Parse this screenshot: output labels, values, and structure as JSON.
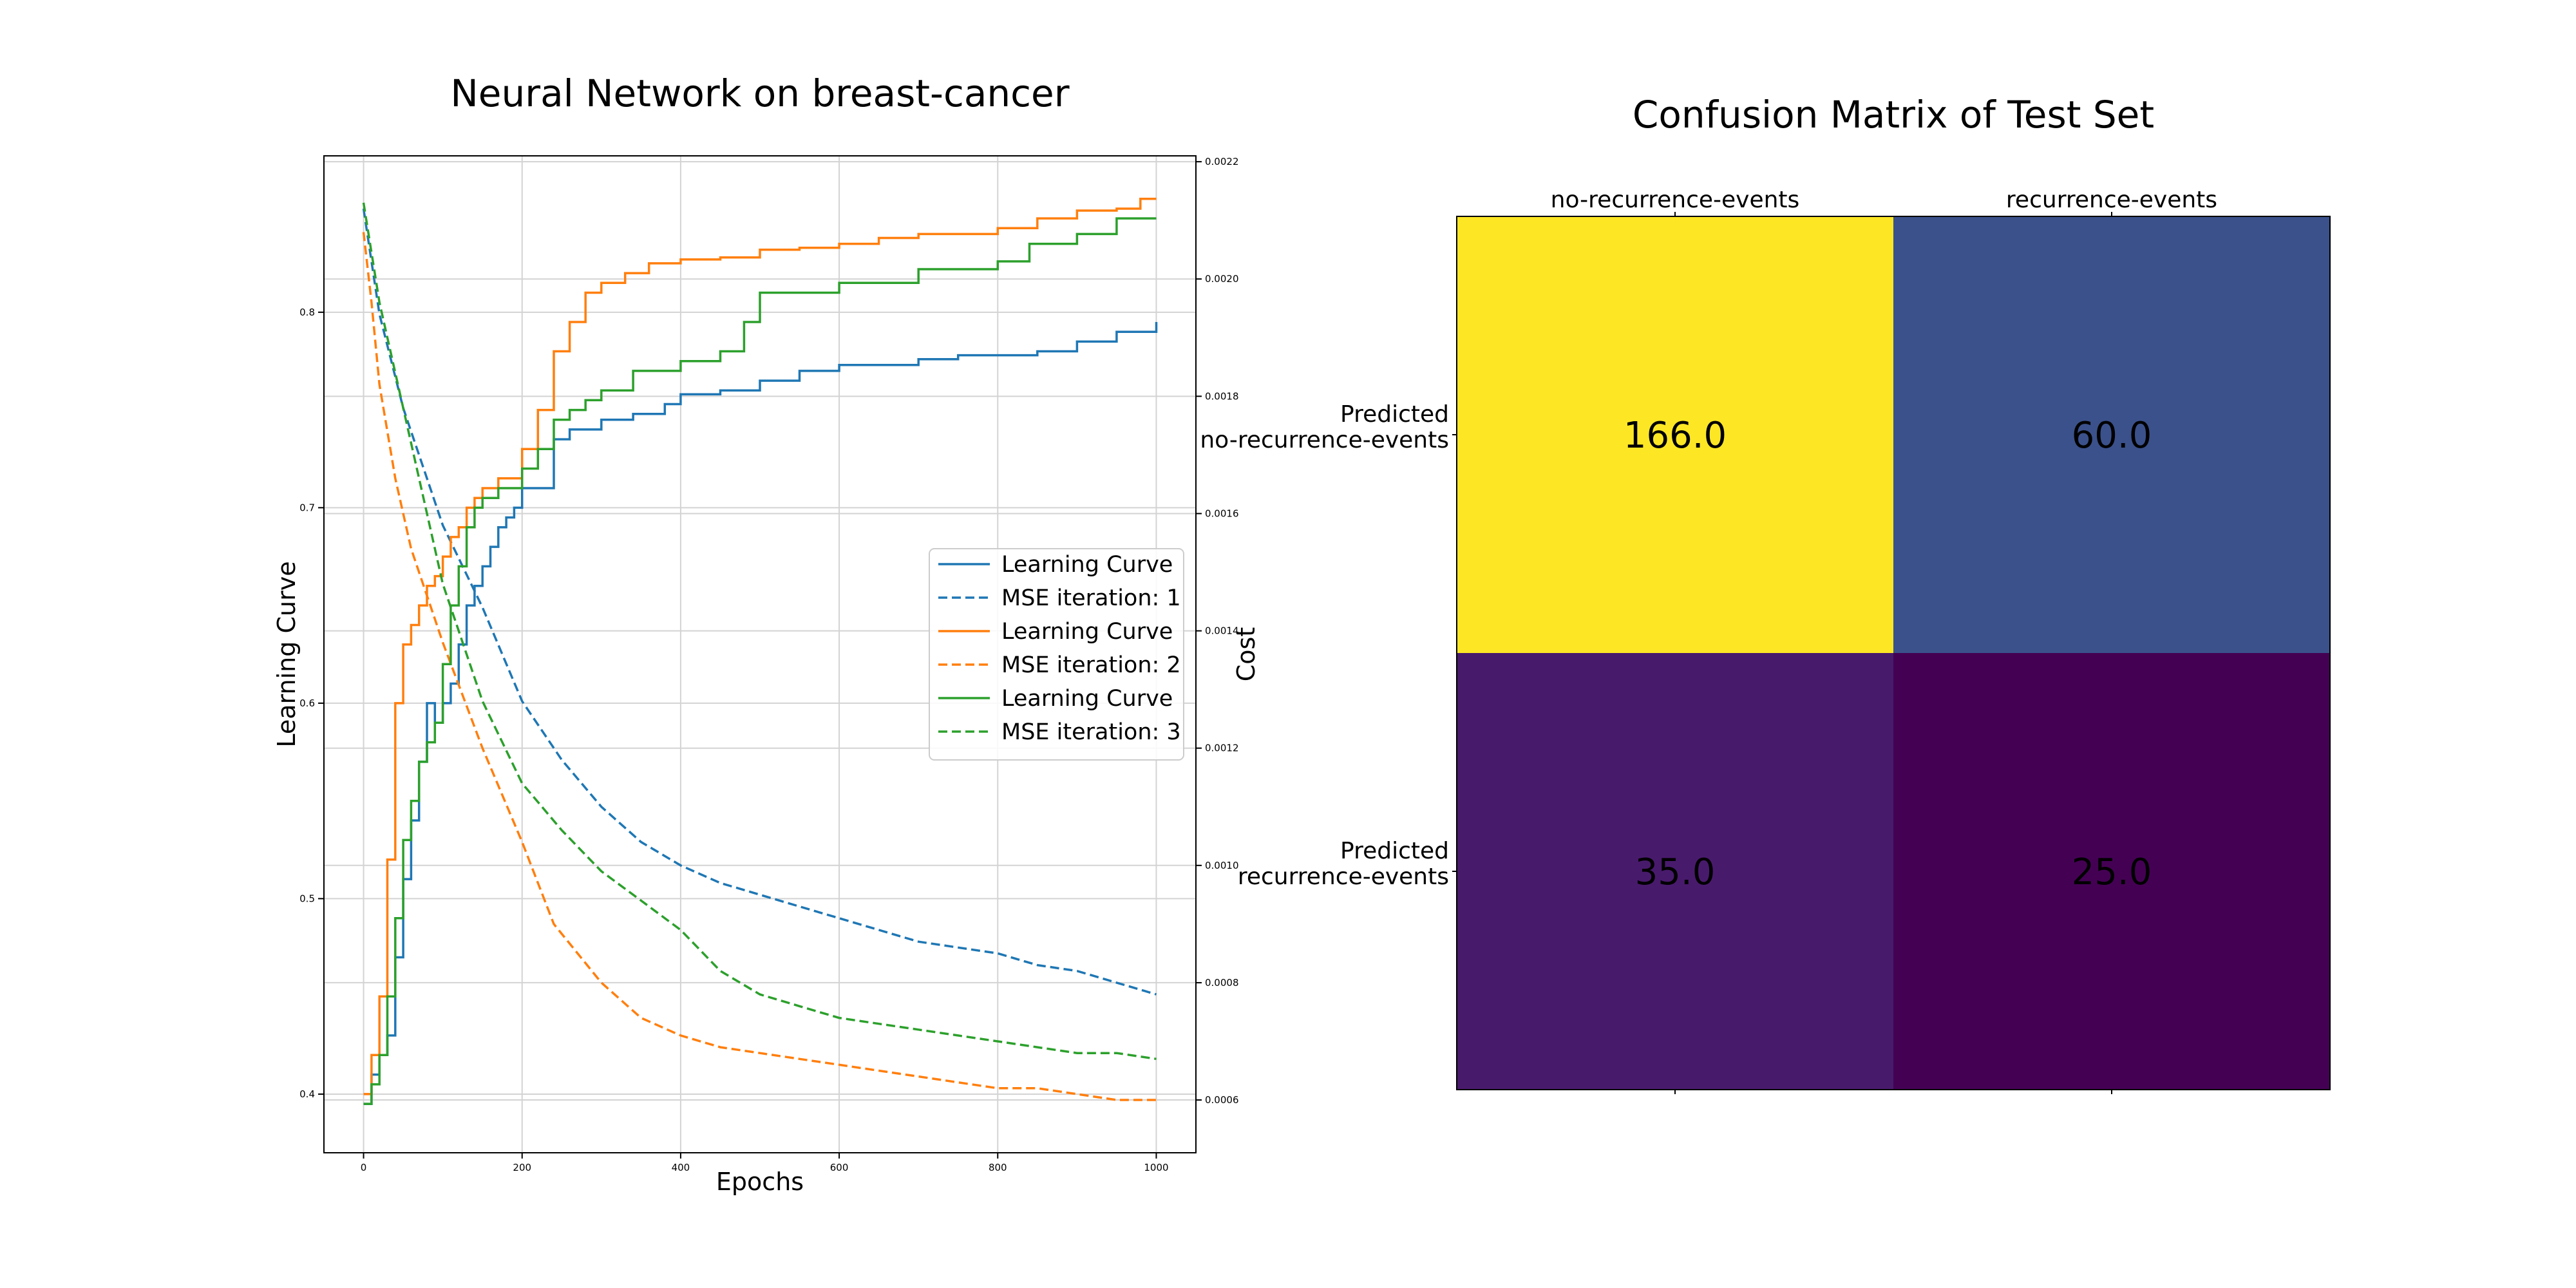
{
  "figure": {
    "left_title": "Neural Network on breast-cancer",
    "right_title": "Confusion Matrix of Test Set"
  },
  "chart_data": [
    {
      "type": "line",
      "title": "Neural Network on breast-cancer",
      "xlabel": "Epochs",
      "ylabel": "Learning Curve",
      "y2label": "Cost",
      "xlim": [
        -50,
        1050
      ],
      "ylim": [
        0.37,
        0.88
      ],
      "y2lim": [
        0.00051,
        0.00221
      ],
      "xticks": [
        0,
        200,
        400,
        600,
        800,
        1000
      ],
      "yticks": [
        0.4,
        0.5,
        0.6,
        0.7,
        0.8
      ],
      "y2ticks": [
        0.0006,
        0.0008,
        0.001,
        0.0012,
        0.0014,
        0.0016,
        0.0018,
        0.002,
        0.0022
      ],
      "grid": true,
      "legend_position": "center-right",
      "series": [
        {
          "name": "Learning Curve",
          "axis": "left",
          "style": "solid",
          "color": "#1f77b4",
          "x": [
            0,
            10,
            20,
            30,
            40,
            50,
            60,
            70,
            80,
            90,
            100,
            110,
            120,
            130,
            140,
            150,
            160,
            170,
            180,
            190,
            200,
            220,
            240,
            260,
            280,
            300,
            340,
            380,
            400,
            450,
            500,
            550,
            600,
            650,
            700,
            750,
            800,
            850,
            900,
            950,
            1000
          ],
          "y": [
            0.395,
            0.41,
            0.42,
            0.43,
            0.47,
            0.51,
            0.54,
            0.57,
            0.6,
            0.59,
            0.6,
            0.61,
            0.63,
            0.65,
            0.66,
            0.67,
            0.68,
            0.69,
            0.695,
            0.7,
            0.71,
            0.71,
            0.735,
            0.74,
            0.74,
            0.745,
            0.748,
            0.753,
            0.758,
            0.76,
            0.765,
            0.77,
            0.773,
            0.773,
            0.776,
            0.778,
            0.778,
            0.78,
            0.785,
            0.79,
            0.795
          ]
        },
        {
          "name": "MSE iteration: 1",
          "axis": "right",
          "style": "dashed",
          "color": "#1f77b4",
          "x": [
            0,
            20,
            50,
            100,
            150,
            200,
            250,
            300,
            350,
            400,
            450,
            500,
            550,
            600,
            650,
            700,
            750,
            800,
            850,
            900,
            950,
            1000
          ],
          "y": [
            0.00212,
            0.00194,
            0.00178,
            0.00158,
            0.00144,
            0.00128,
            0.00118,
            0.0011,
            0.00104,
            0.001,
            0.00097,
            0.00095,
            0.00093,
            0.00091,
            0.00089,
            0.00087,
            0.00086,
            0.00085,
            0.00083,
            0.00082,
            0.0008,
            0.00078
          ]
        },
        {
          "name": "Learning Curve",
          "axis": "left",
          "style": "solid",
          "color": "#ff7f0e",
          "x": [
            0,
            10,
            20,
            30,
            40,
            50,
            60,
            70,
            80,
            90,
            100,
            110,
            120,
            130,
            140,
            150,
            170,
            200,
            220,
            240,
            260,
            280,
            300,
            330,
            360,
            400,
            450,
            500,
            550,
            600,
            650,
            700,
            750,
            800,
            850,
            900,
            950,
            980,
            1000
          ],
          "y": [
            0.4,
            0.42,
            0.45,
            0.52,
            0.6,
            0.63,
            0.64,
            0.65,
            0.66,
            0.665,
            0.675,
            0.685,
            0.69,
            0.7,
            0.705,
            0.71,
            0.715,
            0.73,
            0.75,
            0.78,
            0.795,
            0.81,
            0.815,
            0.82,
            0.825,
            0.827,
            0.828,
            0.832,
            0.833,
            0.835,
            0.838,
            0.84,
            0.84,
            0.843,
            0.848,
            0.852,
            0.853,
            0.858,
            0.858
          ]
        },
        {
          "name": "MSE iteration: 2",
          "axis": "right",
          "style": "dashed",
          "color": "#ff7f0e",
          "x": [
            0,
            10,
            20,
            40,
            60,
            80,
            100,
            150,
            200,
            240,
            300,
            350,
            400,
            450,
            500,
            550,
            600,
            650,
            700,
            750,
            800,
            850,
            900,
            950,
            1000
          ],
          "y": [
            0.00208,
            0.00196,
            0.00182,
            0.00166,
            0.00154,
            0.00146,
            0.00138,
            0.0012,
            0.00104,
            0.0009,
            0.0008,
            0.00074,
            0.00071,
            0.00069,
            0.00068,
            0.00067,
            0.00066,
            0.00065,
            0.00064,
            0.00063,
            0.00062,
            0.00062,
            0.00061,
            0.0006,
            0.0006
          ]
        },
        {
          "name": "Learning Curve",
          "axis": "left",
          "style": "solid",
          "color": "#2ca02c",
          "x": [
            0,
            10,
            20,
            30,
            40,
            50,
            60,
            70,
            80,
            90,
            100,
            110,
            120,
            130,
            140,
            150,
            170,
            200,
            220,
            240,
            260,
            280,
            300,
            340,
            400,
            450,
            480,
            500,
            600,
            700,
            800,
            840,
            900,
            950,
            1000
          ],
          "y": [
            0.395,
            0.405,
            0.42,
            0.45,
            0.49,
            0.53,
            0.55,
            0.57,
            0.58,
            0.59,
            0.62,
            0.65,
            0.67,
            0.69,
            0.7,
            0.705,
            0.71,
            0.72,
            0.73,
            0.745,
            0.75,
            0.755,
            0.76,
            0.77,
            0.775,
            0.78,
            0.795,
            0.81,
            0.815,
            0.822,
            0.826,
            0.835,
            0.84,
            0.848,
            0.848
          ]
        },
        {
          "name": "MSE iteration: 3",
          "axis": "right",
          "style": "dashed",
          "color": "#2ca02c",
          "x": [
            0,
            20,
            50,
            100,
            150,
            200,
            250,
            300,
            350,
            400,
            450,
            500,
            550,
            600,
            650,
            700,
            750,
            800,
            850,
            900,
            950,
            1000
          ],
          "y": [
            0.00213,
            0.00196,
            0.00178,
            0.00148,
            0.00128,
            0.00114,
            0.00106,
            0.00099,
            0.00094,
            0.00089,
            0.00082,
            0.00078,
            0.00076,
            0.00074,
            0.00073,
            0.00072,
            0.00071,
            0.0007,
            0.00069,
            0.00068,
            0.00068,
            0.00067
          ]
        }
      ]
    },
    {
      "type": "heatmap",
      "title": "Confusion Matrix of Test Set",
      "columns": [
        "no-recurrence-events",
        "recurrence-events"
      ],
      "rows": [
        "Predicted\nno-recurrence-events",
        "Predicted\nrecurrence-events"
      ],
      "values": [
        [
          166.0,
          60.0
        ],
        [
          35.0,
          25.0
        ]
      ],
      "value_labels": [
        [
          "166.0",
          "60.0"
        ],
        [
          "35.0",
          "25.0"
        ]
      ],
      "colormap": "viridis",
      "cell_colors": [
        [
          "#fde725",
          "#3b518b"
        ],
        [
          "#481a6c",
          "#440154"
        ]
      ]
    }
  ]
}
